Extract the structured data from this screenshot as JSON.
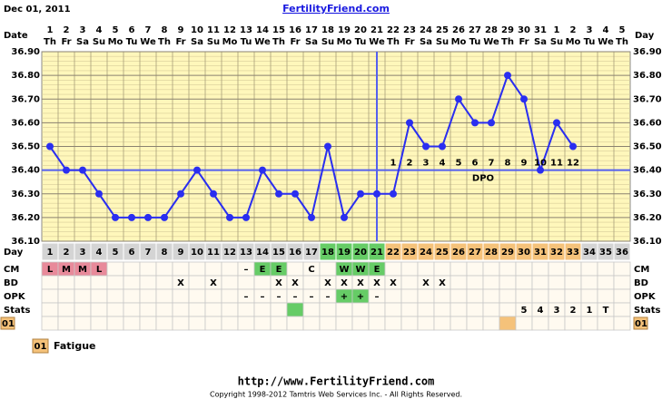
{
  "header": {
    "date": "Dec 01, 2011",
    "site": "FertilityFriend.com"
  },
  "chart_data": {
    "type": "line",
    "x_label": "Date",
    "day_label": "Day",
    "color": "#2a2ef0",
    "grid": true,
    "dates": [
      1,
      2,
      3,
      4,
      5,
      6,
      7,
      8,
      9,
      10,
      11,
      12,
      13,
      14,
      15,
      16,
      17,
      18,
      19,
      20,
      21,
      22,
      23,
      24,
      25,
      26,
      27,
      28,
      29,
      30,
      31,
      1,
      2,
      3,
      4,
      5
    ],
    "weekdays": [
      "Th",
      "Fr",
      "Sa",
      "Su",
      "Mo",
      "Tu",
      "We",
      "Th",
      "Fr",
      "Sa",
      "Su",
      "Mo",
      "Tu",
      "We",
      "Th",
      "Fr",
      "Sa",
      "Su",
      "Mo",
      "Tu",
      "We",
      "Th",
      "Fr",
      "Sa",
      "Su",
      "Mo",
      "Tu",
      "We",
      "Th",
      "Fr",
      "Sa",
      "Su",
      "Mo",
      "Tu",
      "We",
      "Th"
    ],
    "days": [
      1,
      2,
      3,
      4,
      5,
      6,
      7,
      8,
      9,
      10,
      11,
      12,
      13,
      14,
      15,
      16,
      17,
      18,
      19,
      20,
      21,
      22,
      23,
      24,
      25,
      26,
      27,
      28,
      29,
      30,
      31,
      32,
      33,
      34,
      35,
      36
    ],
    "day_colors": [
      "#d4d4d4",
      "#d4d4d4",
      "#d4d4d4",
      "#d4d4d4",
      "#d4d4d4",
      "#d4d4d4",
      "#d4d4d4",
      "#d4d4d4",
      "#d4d4d4",
      "#d4d4d4",
      "#d4d4d4",
      "#d4d4d4",
      "#d4d4d4",
      "#d4d4d4",
      "#d4d4d4",
      "#d4d4d4",
      "#d4d4d4",
      "#66cc66",
      "#66cc66",
      "#66cc66",
      "#66cc66",
      "#f5c27a",
      "#f5c27a",
      "#f5c27a",
      "#f5c27a",
      "#f5c27a",
      "#f5c27a",
      "#f5c27a",
      "#f5c27a",
      "#f5c27a",
      "#f5c27a",
      "#f5c27a",
      "#f5c27a",
      "#d4d4d4",
      "#d4d4d4",
      "#d4d4d4"
    ],
    "values": [
      36.5,
      36.4,
      36.4,
      36.3,
      36.2,
      36.2,
      36.2,
      36.2,
      36.3,
      36.4,
      36.3,
      36.2,
      36.2,
      36.4,
      36.3,
      36.3,
      36.2,
      36.5,
      36.2,
      36.3,
      36.3,
      36.3,
      36.6,
      36.5,
      36.5,
      36.7,
      36.6,
      36.6,
      36.8,
      36.7,
      36.4,
      36.6,
      36.5,
      null,
      null,
      null
    ],
    "ylim": [
      36.1,
      36.9
    ],
    "yticks": [
      {
        "value": 36.1,
        "label": "36.10"
      },
      {
        "value": 36.2,
        "label": "36.20"
      },
      {
        "value": 36.3,
        "label": "36.30"
      },
      {
        "value": 36.4,
        "label": "36.40"
      },
      {
        "value": 36.5,
        "label": "36.50"
      },
      {
        "value": 36.6,
        "label": "36.60"
      },
      {
        "value": 36.7,
        "label": "36.70"
      },
      {
        "value": 36.8,
        "label": "36.80"
      },
      {
        "value": 36.9,
        "label": "36.90"
      }
    ],
    "coverline": 36.4,
    "ovulation_day": 21,
    "dpo": {
      "label": "DPO",
      "values": [
        1,
        2,
        3,
        4,
        5,
        6,
        7,
        8,
        9,
        10,
        11,
        12
      ]
    }
  },
  "rows": [
    {
      "label": "CM",
      "cells": [
        "L",
        "M",
        "M",
        "L",
        null,
        null,
        null,
        null,
        null,
        null,
        null,
        null,
        "–",
        "E",
        "E",
        null,
        "C",
        null,
        "W",
        "W",
        "E",
        null,
        null,
        null,
        null,
        null,
        null,
        null,
        null,
        null,
        null,
        null,
        null,
        null,
        null,
        null
      ],
      "colors": [
        "#e88a9a",
        "#e88a9a",
        "#e88a9a",
        "#e88a9a",
        null,
        null,
        null,
        null,
        null,
        null,
        null,
        null,
        null,
        "#66cc66",
        "#66cc66",
        null,
        null,
        null,
        "#66cc66",
        "#66cc66",
        "#66cc66",
        null,
        null,
        null,
        null,
        null,
        null,
        null,
        null,
        null,
        null,
        null,
        null,
        null,
        null,
        null
      ]
    },
    {
      "label": "BD",
      "cells": [
        null,
        null,
        null,
        null,
        null,
        null,
        null,
        null,
        "X",
        null,
        "X",
        null,
        null,
        null,
        "X",
        "X",
        null,
        "X",
        "X",
        "X",
        "X",
        "X",
        null,
        "X",
        "X",
        null,
        null,
        null,
        null,
        null,
        null,
        null,
        null,
        null,
        null,
        null
      ]
    },
    {
      "label": "OPK",
      "cells": [
        null,
        null,
        null,
        null,
        null,
        null,
        null,
        null,
        null,
        null,
        null,
        null,
        "–",
        "–",
        "–",
        "–",
        "–",
        "–",
        "+",
        "+",
        "–",
        null,
        null,
        null,
        null,
        null,
        null,
        null,
        null,
        null,
        null,
        null,
        null,
        null,
        null,
        null
      ],
      "colors": [
        null,
        null,
        null,
        null,
        null,
        null,
        null,
        null,
        null,
        null,
        null,
        null,
        null,
        null,
        null,
        null,
        null,
        null,
        "#66cc66",
        "#66cc66",
        null,
        null,
        null,
        null,
        null,
        null,
        null,
        null,
        null,
        null,
        null,
        null,
        null,
        null,
        null,
        null
      ]
    },
    {
      "label": "Stats",
      "cells": [
        null,
        null,
        null,
        null,
        null,
        null,
        null,
        null,
        null,
        null,
        null,
        null,
        null,
        null,
        null,
        null,
        null,
        null,
        null,
        null,
        null,
        null,
        null,
        null,
        null,
        null,
        null,
        null,
        null,
        5,
        4,
        3,
        2,
        1,
        "T",
        null
      ],
      "colors": [
        null,
        null,
        null,
        null,
        null,
        null,
        null,
        null,
        null,
        null,
        null,
        null,
        null,
        null,
        null,
        "#66cc66",
        null,
        null,
        null,
        null,
        null,
        null,
        null,
        null,
        null,
        null,
        null,
        null,
        null,
        null,
        null,
        null,
        null,
        null,
        null,
        null
      ]
    },
    {
      "label": "01",
      "label_color": "#f5c27a",
      "cells": [
        null,
        null,
        null,
        null,
        null,
        null,
        null,
        null,
        null,
        null,
        null,
        null,
        null,
        null,
        null,
        null,
        null,
        null,
        null,
        null,
        null,
        null,
        null,
        null,
        null,
        null,
        null,
        null,
        null,
        null,
        null,
        null,
        null,
        null,
        null,
        null
      ],
      "colors": [
        null,
        null,
        null,
        null,
        null,
        null,
        null,
        null,
        null,
        null,
        null,
        null,
        null,
        null,
        null,
        null,
        null,
        null,
        null,
        null,
        null,
        null,
        null,
        null,
        null,
        null,
        null,
        null,
        "#f5c27a",
        null,
        null,
        null,
        null,
        null,
        null,
        null
      ]
    }
  ],
  "legend": {
    "code": "01",
    "text": "Fatigue",
    "color": "#f5c27a"
  },
  "footer": {
    "url": "http://www.FertilityFriend.com",
    "copyright": "Copyright 1998-2012 Tamtris Web Services Inc. - All Rights Reserved."
  }
}
